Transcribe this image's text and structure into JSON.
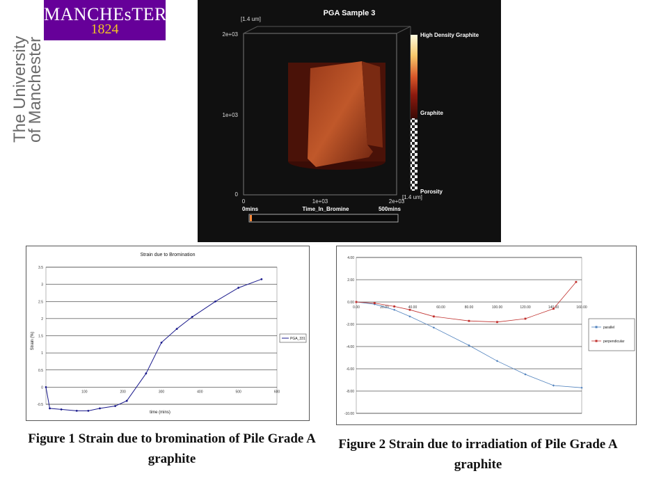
{
  "logo": {
    "name": "MANCHEsTER",
    "year": "1824",
    "university_line1": "The University",
    "university_line2": "of Manchester",
    "brand_color": "#660099",
    "year_color": "#f3c623"
  },
  "render_panel": {
    "title": "PGA Sample 3",
    "unit_top": "[1.4 um]",
    "unit_right": "[1.4 um]",
    "y_ticks": [
      "2e+03",
      "1e+03",
      "0"
    ],
    "x_ticks": [
      "0",
      "1e+03",
      "2e+03"
    ],
    "colorbar_labels": [
      "High Density Graphite",
      "Graphite",
      "Porosity"
    ],
    "time_start": "0mins",
    "time_label": "Time_In_Bromine",
    "time_end": "500mins"
  },
  "chart_data": [
    {
      "type": "line",
      "title": "Strain due to Bromination",
      "xlabel": "time (mins)",
      "ylabel": "Strain (%)",
      "xlim": [
        0,
        600
      ],
      "ylim": [
        -0.5,
        3.5
      ],
      "x_ticks": [
        100,
        200,
        300,
        400,
        500,
        600
      ],
      "y_ticks": [
        -0.5,
        0,
        0.5,
        1,
        1.5,
        2,
        2.5,
        3,
        3.5
      ],
      "y_tick_labels": [
        "-0.5",
        "0",
        "0.5",
        "1",
        "1.5",
        "2",
        "2.5",
        "3",
        "3.5"
      ],
      "series": [
        {
          "name": "PGA_331",
          "color": "#1a1a8c",
          "x": [
            0,
            10,
            40,
            80,
            110,
            140,
            180,
            210,
            260,
            300,
            340,
            380,
            440,
            500,
            560
          ],
          "y": [
            0.0,
            -0.62,
            -0.65,
            -0.69,
            -0.69,
            -0.62,
            -0.55,
            -0.4,
            0.4,
            1.3,
            1.7,
            2.05,
            2.5,
            2.9,
            3.15
          ]
        }
      ],
      "legend": "right"
    },
    {
      "type": "line",
      "title": "",
      "xlim": [
        0,
        160
      ],
      "ylim": [
        -10,
        4
      ],
      "x_ticks": [
        0,
        20,
        40,
        60,
        80,
        100,
        120,
        140,
        160
      ],
      "x_tick_labels": [
        "0.00",
        "20.00",
        "40.00",
        "60.00",
        "80.00",
        "100.00",
        "120.00",
        "140.00",
        "160.00"
      ],
      "y_ticks": [
        4,
        2,
        0,
        -2,
        -4,
        -6,
        -8,
        -10
      ],
      "y_tick_labels": [
        "4.00",
        "2.00",
        "0.00",
        "-2.00",
        "-4.00",
        "-6.00",
        "-8.00",
        "-10.00"
      ],
      "series": [
        {
          "name": "parallel",
          "color": "#4f81bd",
          "x": [
            0,
            13,
            27,
            38,
            55,
            80,
            100,
            120,
            140,
            160
          ],
          "y": [
            0.0,
            -0.2,
            -0.7,
            -1.3,
            -2.3,
            -3.9,
            -5.3,
            -6.5,
            -7.5,
            -7.7
          ]
        },
        {
          "name": "perpendicular",
          "color": "#c0302d",
          "x": [
            0,
            13,
            27,
            38,
            55,
            80,
            100,
            120,
            140,
            156
          ],
          "y": [
            0.0,
            -0.1,
            -0.4,
            -0.7,
            -1.3,
            -1.7,
            -1.8,
            -1.5,
            -0.6,
            1.8
          ]
        }
      ],
      "legend": "right"
    }
  ],
  "captions": {
    "fig1": "Figure 1 Strain due to bromination of Pile Grade A graphite",
    "fig2": "Figure 2 Strain due to irradiation of Pile Grade A graphite"
  }
}
